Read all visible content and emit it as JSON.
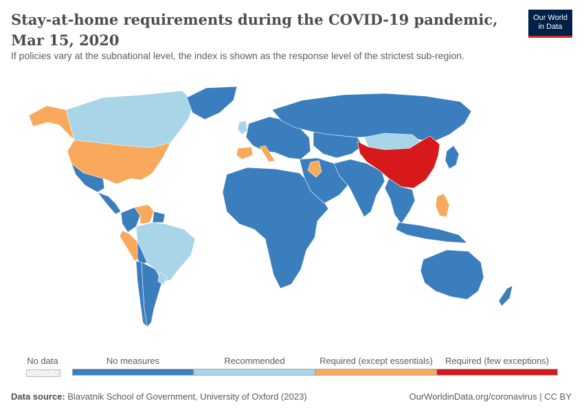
{
  "title": "Stay-at-home requirements during the COVID-19 pandemic, Mar 15, 2020",
  "subtitle": "If policies vary at the subnational level, the index is shown as the response level of the strictest sub-region.",
  "logo": {
    "line1": "Our World",
    "line2": "in Data"
  },
  "legend": {
    "no_data": "No data",
    "categories": [
      {
        "label": "No measures",
        "color": "#3a7ebe"
      },
      {
        "label": "Recommended",
        "color": "#a8d5e8"
      },
      {
        "label": "Required (except essentials)",
        "color": "#f8a95b"
      },
      {
        "label": "Required (few exceptions)",
        "color": "#d7191c"
      }
    ]
  },
  "map_regions": [
    {
      "name": "Canada",
      "category": "Recommended"
    },
    {
      "name": "Alaska",
      "category": "Required (except essentials)"
    },
    {
      "name": "United States",
      "category": "Required (except essentials)"
    },
    {
      "name": "Greenland",
      "category": "No measures"
    },
    {
      "name": "Mexico",
      "category": "No measures"
    },
    {
      "name": "Central America",
      "category": "No measures"
    },
    {
      "name": "Colombia",
      "category": "No measures"
    },
    {
      "name": "Venezuela",
      "category": "Required (except essentials)"
    },
    {
      "name": "Guianas",
      "category": "No measures"
    },
    {
      "name": "Peru",
      "category": "Required (except essentials)"
    },
    {
      "name": "Brazil",
      "category": "Recommended"
    },
    {
      "name": "Bolivia",
      "category": "No measures"
    },
    {
      "name": "Argentina",
      "category": "No measures"
    },
    {
      "name": "Chile",
      "category": "No measures"
    },
    {
      "name": "Uruguay",
      "category": "Recommended"
    },
    {
      "name": "Africa",
      "category": "No measures"
    },
    {
      "name": "Europe",
      "category": "No measures"
    },
    {
      "name": "United Kingdom",
      "category": "Recommended"
    },
    {
      "name": "Spain",
      "category": "Required (except essentials)"
    },
    {
      "name": "Italy",
      "category": "Required (except essentials)"
    },
    {
      "name": "Russia",
      "category": "No measures"
    },
    {
      "name": "Middle East",
      "category": "No measures"
    },
    {
      "name": "Iraq",
      "category": "Required (except essentials)"
    },
    {
      "name": "Central Asia",
      "category": "No measures"
    },
    {
      "name": "India",
      "category": "No measures"
    },
    {
      "name": "Mongolia",
      "category": "Recommended"
    },
    {
      "name": "China",
      "category": "Required (few exceptions)"
    },
    {
      "name": "Southeast Asia",
      "category": "No measures"
    },
    {
      "name": "Philippines",
      "category": "Required (except essentials)"
    },
    {
      "name": "Japan",
      "category": "No measures"
    },
    {
      "name": "Indonesia",
      "category": "No measures"
    },
    {
      "name": "Australia",
      "category": "No measures"
    },
    {
      "name": "New Zealand",
      "category": "No measures"
    }
  ],
  "footer": {
    "source_label": "Data source:",
    "source_text": "Blavatnik School of Government, University of Oxford (2023)",
    "right": "OurWorldinData.org/coronavirus | CC BY"
  }
}
